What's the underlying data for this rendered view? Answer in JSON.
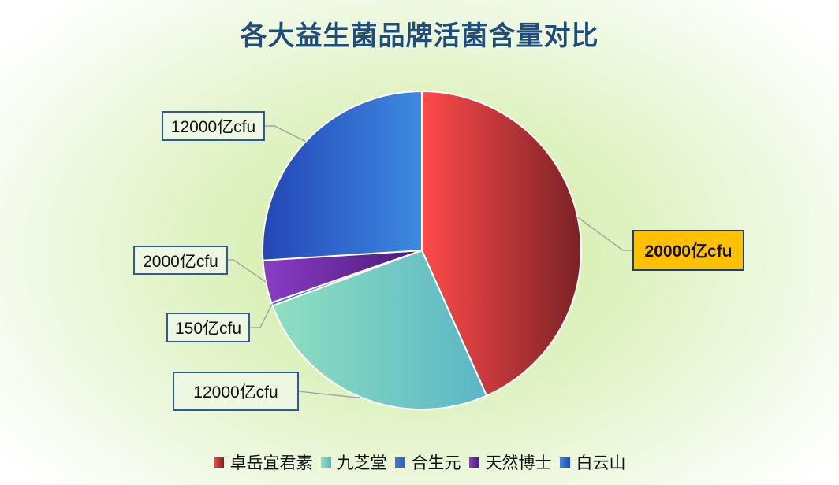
{
  "chart_data": {
    "type": "pie",
    "title": "各大益生菌品牌活菌含量对比",
    "categories": [
      "卓岳宜君素",
      "九芝堂",
      "合生元",
      "天然博士",
      "白云山"
    ],
    "values": [
      20000,
      12000,
      150,
      2000,
      12000
    ],
    "data_labels": [
      "20000亿cfu",
      "12000亿cfu",
      "150亿cfu",
      "2000亿cfu",
      "12000亿cfu"
    ],
    "colors": [
      "#e84040",
      "#7fd3bf",
      "#3a78d0",
      "#6a2a9a",
      "#3a7fd8"
    ],
    "legend_position": "bottom",
    "highlighted_label": "20000亿cfu"
  }
}
